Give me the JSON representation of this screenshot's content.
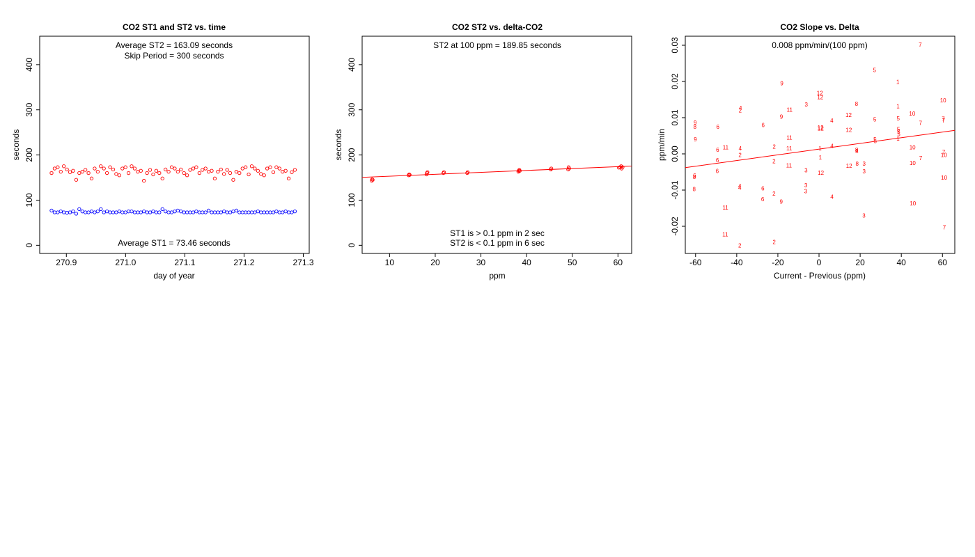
{
  "colors": {
    "st1": "#0000ff",
    "st2": "#ff0000",
    "axis": "#000000"
  },
  "chart_data": [
    {
      "type": "scatter",
      "title": "CO2 ST1 and ST2 vs. time",
      "xlabel": "day of year",
      "ylabel": "seconds",
      "xlim": [
        270.855,
        271.31
      ],
      "ylim": [
        -18,
        463
      ],
      "xticks": [
        "270.9",
        "271.0",
        "271.1",
        "271.2",
        "271.3"
      ],
      "xtick_values": [
        270.9,
        271.0,
        271.1,
        271.2,
        271.3
      ],
      "yticks": [
        "0",
        "100",
        "200",
        "300",
        "400"
      ],
      "ytick_values": [
        0,
        100,
        200,
        300,
        400
      ],
      "annotations": {
        "avg_st2": "Average ST2 =  163.09  seconds",
        "skip": "Skip Period =  300  seconds",
        "avg_st1": "Average ST1 =  73.46  seconds"
      },
      "series": [
        {
          "name": "ST2",
          "color": "#ff0000",
          "x_start": 270.875,
          "x_step": 0.0052,
          "values": [
            160,
            170,
            173,
            163,
            175,
            168,
            162,
            165,
            145,
            160,
            163,
            167,
            160,
            148,
            170,
            163,
            175,
            170,
            160,
            173,
            168,
            158,
            155,
            170,
            173,
            160,
            175,
            170,
            163,
            165,
            143,
            160,
            167,
            157,
            165,
            160,
            148,
            168,
            163,
            173,
            170,
            163,
            168,
            160,
            155,
            167,
            170,
            173,
            160,
            167,
            170,
            163,
            165,
            148,
            163,
            168,
            158,
            167,
            160,
            145,
            163,
            160,
            170,
            173,
            157,
            175,
            170,
            165,
            158,
            155,
            170,
            173,
            162,
            173,
            170,
            163,
            165,
            148,
            162,
            167
          ]
        },
        {
          "name": "ST1",
          "color": "#0000ff",
          "x_start": 270.875,
          "x_step": 0.0052,
          "values": [
            77,
            73,
            73,
            75,
            73,
            72,
            73,
            75,
            70,
            80,
            75,
            73,
            73,
            75,
            73,
            75,
            80,
            73,
            75,
            73,
            73,
            73,
            75,
            73,
            73,
            75,
            75,
            73,
            73,
            73,
            75,
            73,
            73,
            75,
            73,
            73,
            80,
            75,
            73,
            73,
            75,
            77,
            75,
            73,
            73,
            73,
            73,
            75,
            73,
            73,
            73,
            77,
            73,
            73,
            73,
            73,
            75,
            73,
            73,
            75,
            77,
            73,
            73,
            73,
            73,
            73,
            73,
            75,
            73,
            73,
            73,
            73,
            73,
            75,
            73,
            73,
            75,
            73,
            73,
            75
          ]
        }
      ]
    },
    {
      "type": "scatter",
      "title": "CO2 ST2 vs. delta-CO2",
      "xlabel": "ppm",
      "ylabel": "seconds",
      "xlim": [
        4,
        63
      ],
      "ylim": [
        -18,
        463
      ],
      "xticks": [
        "10",
        "20",
        "30",
        "40",
        "50",
        "60"
      ],
      "xtick_values": [
        10,
        20,
        30,
        40,
        50,
        60
      ],
      "yticks": [
        "0",
        "100",
        "200",
        "300",
        "400"
      ],
      "ytick_values": [
        0,
        100,
        200,
        300,
        400
      ],
      "annotations": {
        "st2_at_100": "ST2 at 100 ppm =  189.85  seconds",
        "st1_note": "ST1 is > 0.1 ppm in 2 sec",
        "st2_note": "ST2 is < 0.1 ppm in 6 sec"
      },
      "fit_line": {
        "x": [
          4,
          63
        ],
        "y": [
          150.5,
          175.5
        ],
        "color": "#ff0000"
      },
      "series": [
        {
          "name": "ST2",
          "color": "#ff0000",
          "points": [
            [
              6.1,
              143
            ],
            [
              6.2,
              146
            ],
            [
              6.3,
              145
            ],
            [
              14.2,
              155
            ],
            [
              14.3,
              157
            ],
            [
              14.4,
              156
            ],
            [
              18.1,
              157
            ],
            [
              18.2,
              160
            ],
            [
              18.3,
              162
            ],
            [
              21.8,
              160
            ],
            [
              21.9,
              162
            ],
            [
              27.0,
              160
            ],
            [
              27.1,
              162
            ],
            [
              38.2,
              163
            ],
            [
              38.3,
              165
            ],
            [
              38.4,
              167
            ],
            [
              38.5,
              165
            ],
            [
              45.3,
              168
            ],
            [
              45.4,
              170
            ],
            [
              49.1,
              168
            ],
            [
              49.2,
              173
            ],
            [
              49.3,
              170
            ],
            [
              60.2,
              172
            ],
            [
              60.5,
              173
            ],
            [
              60.8,
              170
            ],
            [
              61.0,
              173
            ],
            [
              60.7,
              175
            ]
          ]
        }
      ]
    },
    {
      "type": "scatter",
      "title": "CO2 Slope vs. Delta",
      "xlabel": "Current - Previous (ppm)",
      "ylabel": "ppm/min",
      "xlim": [
        -65,
        66
      ],
      "ylim": [
        -0.0275,
        0.0325
      ],
      "xticks": [
        "-60",
        "-40",
        "-20",
        "0",
        "20",
        "40",
        "60"
      ],
      "xtick_values": [
        -60,
        -40,
        -20,
        0,
        20,
        40,
        60
      ],
      "yticks": [
        "-0.02",
        "-0.01",
        "0.00",
        "0.01",
        "0.02",
        "0.03"
      ],
      "ytick_values": [
        -0.02,
        -0.01,
        0.0,
        0.01,
        0.02,
        0.03
      ],
      "annotations": {
        "slope": "0.008  ppm/min/(100 ppm)"
      },
      "fit_line": {
        "x": [
          -65,
          66
        ],
        "y": [
          -0.0038,
          0.0065
        ],
        "color": "#ff0000"
      },
      "series": [
        {
          "name": "",
          "color": "#ff0000",
          "labeled_points": [
            [
              "7",
              49.2,
              0.0302
            ],
            [
              "5",
              27.0,
              0.0232
            ],
            [
              "1",
              38.3,
              0.0199
            ],
            [
              "9",
              -18.1,
              0.0195
            ],
            [
              "12",
              0.4,
              0.0168
            ],
            [
              "12",
              0.6,
              0.0157
            ],
            [
              "10",
              60.3,
              0.0148
            ],
            [
              "3",
              -6.2,
              0.0137
            ],
            [
              "8",
              18.2,
              0.0138
            ],
            [
              "1",
              38.4,
              0.0132
            ],
            [
              "4",
              -38.2,
              0.0127
            ],
            [
              "2",
              -38.3,
              0.012
            ],
            [
              "11",
              -14.3,
              0.0122
            ],
            [
              "10",
              45.3,
              0.0112
            ],
            [
              "12",
              14.4,
              0.0108
            ],
            [
              "9",
              -18.3,
              0.0103
            ],
            [
              "5",
              27.1,
              0.0095
            ],
            [
              "5",
              38.5,
              0.0098
            ],
            [
              "7",
              60.4,
              0.0097
            ],
            [
              "7",
              60.5,
              0.0092
            ],
            [
              "4",
              6.2,
              0.0092
            ],
            [
              "9",
              -60.2,
              0.0087
            ],
            [
              "7",
              49.3,
              0.0086
            ],
            [
              "6",
              -27.2,
              0.008
            ],
            [
              "8",
              -60.3,
              0.0075
            ],
            [
              "6",
              -49.2,
              0.0075
            ],
            [
              "12",
              0.7,
              0.0073
            ],
            [
              "12",
              0.8,
              0.007
            ],
            [
              "12",
              14.5,
              0.0066
            ],
            [
              "5",
              38.6,
              0.0068
            ],
            [
              "5",
              38.7,
              0.0062
            ],
            [
              "5",
              38.8,
              0.0055
            ],
            [
              "11",
              -14.4,
              0.0045
            ],
            [
              "5",
              27.2,
              0.004
            ],
            [
              "5",
              27.3,
              0.0036
            ],
            [
              "9",
              -60.1,
              0.004
            ],
            [
              "1",
              38.4,
              0.0042
            ],
            [
              "4",
              6.3,
              0.0022
            ],
            [
              "2",
              -21.8,
              0.002
            ],
            [
              "11",
              -45.4,
              0.0018
            ],
            [
              "6",
              -49.3,
              0.0012
            ],
            [
              "4",
              -38.3,
              0.0015
            ],
            [
              "11",
              -14.5,
              0.0015
            ],
            [
              "1",
              0.5,
              0.0015
            ],
            [
              "10",
              45.4,
              0.0018
            ],
            [
              "8",
              18.3,
              0.0012
            ],
            [
              "8",
              18.4,
              0.0008
            ],
            [
              "7",
              60.6,
              0.0005
            ],
            [
              "10",
              60.7,
              -0.0003
            ],
            [
              "2",
              -38.4,
              -0.0003
            ],
            [
              "1",
              0.6,
              -0.001
            ],
            [
              "6",
              -49.4,
              -0.0017
            ],
            [
              "7",
              49.4,
              -0.0012
            ],
            [
              "2",
              -21.9,
              -0.002
            ],
            [
              "10",
              45.5,
              -0.0025
            ],
            [
              "8",
              18.5,
              -0.0027
            ],
            [
              "3",
              21.9,
              -0.0027
            ],
            [
              "11",
              -14.6,
              -0.0032
            ],
            [
              "12",
              14.6,
              -0.0033
            ],
            [
              "6",
              -49.5,
              -0.0047
            ],
            [
              "3",
              -6.3,
              -0.0045
            ],
            [
              "3",
              21.9,
              -0.0048
            ],
            [
              "12",
              0.9,
              -0.0052
            ],
            [
              "6",
              -60.5,
              -0.006
            ],
            [
              "8",
              -60.6,
              -0.0063
            ],
            [
              "10",
              60.8,
              -0.0065
            ],
            [
              "3",
              -6.4,
              -0.0087
            ],
            [
              "4",
              -38.5,
              -0.0088
            ],
            [
              "4",
              -38.5,
              -0.0093
            ],
            [
              "6",
              -27.3,
              -0.0095
            ],
            [
              "8",
              -60.7,
              -0.0097
            ],
            [
              "3",
              -6.5,
              -0.0103
            ],
            [
              "2",
              -21.9,
              -0.011
            ],
            [
              "4",
              6.3,
              -0.0118
            ],
            [
              "6",
              -27.4,
              -0.0125
            ],
            [
              "9",
              -18.4,
              -0.0132
            ],
            [
              "10",
              45.6,
              -0.0137
            ],
            [
              "11",
              -45.5,
              -0.0148
            ],
            [
              "3",
              21.8,
              -0.017
            ],
            [
              "7",
              60.9,
              -0.0203
            ],
            [
              "11",
              -45.6,
              -0.0222
            ],
            [
              "2",
              -21.8,
              -0.0243
            ],
            [
              "2",
              -38.5,
              -0.0253
            ]
          ]
        }
      ]
    }
  ]
}
